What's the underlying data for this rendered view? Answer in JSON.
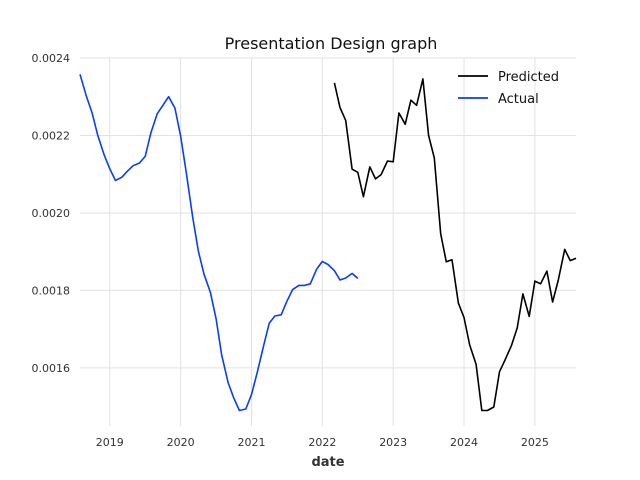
{
  "chart_data": {
    "type": "line",
    "title": "Presentation Design graph",
    "xlabel": "date",
    "ylabel": "",
    "xlim": [
      2018.58,
      2025.58
    ],
    "ylim": [
      0.00145,
      0.0024
    ],
    "x_ticks": [
      2019,
      2020,
      2021,
      2022,
      2023,
      2024,
      2025
    ],
    "x_tick_labels": [
      "2019",
      "2020",
      "2021",
      "2022",
      "2023",
      "2024",
      "2025"
    ],
    "y_ticks": [
      0.0016,
      0.0018,
      0.002,
      0.0022,
      0.0024
    ],
    "y_tick_labels": [
      "0.0016",
      "0.0018",
      "0.0020",
      "0.0022",
      "0.0024"
    ],
    "grid": true,
    "legend_position": "top-right",
    "series": [
      {
        "name": "Predicted",
        "color": "#000000",
        "points": [
          [
            2022.17,
            0.002336
          ],
          [
            2022.25,
            0.002272
          ],
          [
            2022.33,
            0.002239
          ],
          [
            2022.42,
            0.002113
          ],
          [
            2022.5,
            0.002105
          ],
          [
            2022.58,
            0.002042
          ],
          [
            2022.67,
            0.002119
          ],
          [
            2022.75,
            0.002088
          ],
          [
            2022.83,
            0.002099
          ],
          [
            2022.92,
            0.002134
          ],
          [
            2023.0,
            0.002132
          ],
          [
            2023.08,
            0.002258
          ],
          [
            2023.17,
            0.002229
          ],
          [
            2023.25,
            0.002291
          ],
          [
            2023.33,
            0.002278
          ],
          [
            2023.42,
            0.002346
          ],
          [
            2023.5,
            0.0022
          ],
          [
            2023.58,
            0.002142
          ],
          [
            2023.67,
            0.001946
          ],
          [
            2023.75,
            0.001874
          ],
          [
            2023.83,
            0.001879
          ],
          [
            2023.92,
            0.001767
          ],
          [
            2024.0,
            0.00173
          ],
          [
            2024.08,
            0.001659
          ],
          [
            2024.17,
            0.001609
          ],
          [
            2024.25,
            0.00149
          ],
          [
            2024.33,
            0.00149
          ],
          [
            2024.42,
            0.001499
          ],
          [
            2024.5,
            0.00159
          ],
          [
            2024.58,
            0.001621
          ],
          [
            2024.67,
            0.001658
          ],
          [
            2024.75,
            0.001703
          ],
          [
            2024.83,
            0.001791
          ],
          [
            2024.92,
            0.001733
          ],
          [
            2025.0,
            0.001824
          ],
          [
            2025.08,
            0.001817
          ],
          [
            2025.17,
            0.00185
          ],
          [
            2025.25,
            0.00177
          ],
          [
            2025.33,
            0.001827
          ],
          [
            2025.42,
            0.001906
          ],
          [
            2025.5,
            0.001877
          ],
          [
            2025.58,
            0.001883
          ]
        ]
      },
      {
        "name": "Actual",
        "color": "#0a3ef5",
        "points": [
          [
            2018.58,
            0.002358
          ],
          [
            2018.67,
            0.002301
          ],
          [
            2018.75,
            0.002259
          ],
          [
            2018.83,
            0.002201
          ],
          [
            2018.92,
            0.00215
          ],
          [
            2019.0,
            0.002114
          ],
          [
            2019.08,
            0.002084
          ],
          [
            2019.17,
            0.002092
          ],
          [
            2019.25,
            0.002108
          ],
          [
            2019.33,
            0.002122
          ],
          [
            2019.42,
            0.002129
          ],
          [
            2019.5,
            0.002146
          ],
          [
            2019.58,
            0.002207
          ],
          [
            2019.67,
            0.002256
          ],
          [
            2019.75,
            0.002278
          ],
          [
            2019.83,
            0.0023
          ],
          [
            2019.92,
            0.002271
          ],
          [
            2020.0,
            0.002199
          ],
          [
            2020.08,
            0.002104
          ],
          [
            2020.17,
            0.001989
          ],
          [
            2020.25,
            0.001902
          ],
          [
            2020.33,
            0.001842
          ],
          [
            2020.42,
            0.001795
          ],
          [
            2020.5,
            0.001728
          ],
          [
            2020.58,
            0.001633
          ],
          [
            2020.67,
            0.001562
          ],
          [
            2020.75,
            0.001522
          ],
          [
            2020.83,
            0.00149
          ],
          [
            2020.92,
            0.001494
          ],
          [
            2021.0,
            0.001531
          ],
          [
            2021.08,
            0.001587
          ],
          [
            2021.17,
            0.001656
          ],
          [
            2021.25,
            0.001715
          ],
          [
            2021.33,
            0.001734
          ],
          [
            2021.42,
            0.001737
          ],
          [
            2021.5,
            0.001772
          ],
          [
            2021.58,
            0.001802
          ],
          [
            2021.67,
            0.001813
          ],
          [
            2021.75,
            0.001813
          ],
          [
            2021.83,
            0.001817
          ],
          [
            2021.92,
            0.001855
          ],
          [
            2022.0,
            0.001875
          ],
          [
            2022.08,
            0.001867
          ],
          [
            2022.17,
            0.001851
          ],
          [
            2022.25,
            0.001827
          ],
          [
            2022.33,
            0.001832
          ],
          [
            2022.42,
            0.001844
          ],
          [
            2022.5,
            0.001831
          ]
        ]
      }
    ]
  }
}
